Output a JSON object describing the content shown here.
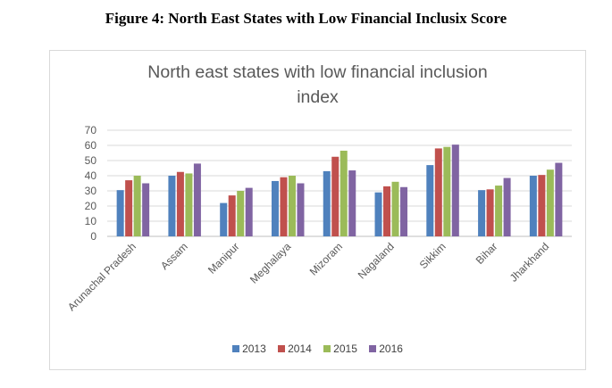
{
  "figure_caption": "Figure 4: North East States with Low Financial Inclusix Score",
  "chart_data": {
    "type": "bar",
    "title_line1": "North east states with low financial inclusion",
    "title_line2": "index",
    "categories": [
      "Arunachal Pradesh",
      "Assam",
      "Manipur",
      "Meghalaya",
      "Mizoram",
      "Nagaland",
      "Sikkim",
      "Bihar",
      "Jharkhand"
    ],
    "series": [
      {
        "name": "2013",
        "color": "#4f81bd",
        "values": [
          30.5,
          40,
          22,
          36.5,
          43,
          29,
          47,
          30.5,
          40
        ]
      },
      {
        "name": "2014",
        "color": "#c0504d",
        "values": [
          37,
          42.5,
          27,
          39,
          52.5,
          33,
          58,
          31,
          40.5
        ]
      },
      {
        "name": "2015",
        "color": "#9bbb59",
        "values": [
          40,
          41.5,
          30,
          40,
          56.5,
          36,
          59,
          33.5,
          44
        ]
      },
      {
        "name": "2016",
        "color": "#8064a2",
        "values": [
          35,
          48,
          32,
          35,
          43.5,
          32.5,
          60.5,
          38.5,
          48.5
        ]
      }
    ],
    "yticks": [
      "0",
      "10",
      "20",
      "30",
      "40",
      "50",
      "60",
      "70"
    ],
    "ylim": [
      0,
      70
    ],
    "grid": true,
    "legend_position": "bottom",
    "xlabel": "",
    "ylabel": ""
  }
}
